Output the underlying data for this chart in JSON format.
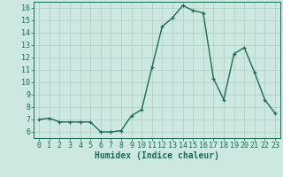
{
  "x": [
    0,
    1,
    2,
    3,
    4,
    5,
    6,
    7,
    8,
    9,
    10,
    11,
    12,
    13,
    14,
    15,
    16,
    17,
    18,
    19,
    20,
    21,
    22,
    23
  ],
  "y": [
    7.0,
    7.1,
    6.8,
    6.8,
    6.8,
    6.8,
    6.0,
    6.0,
    6.1,
    7.3,
    7.8,
    11.2,
    14.5,
    15.2,
    16.2,
    15.8,
    15.6,
    10.3,
    8.6,
    12.3,
    12.8,
    10.8,
    8.6,
    7.5
  ],
  "line_color": "#1a6b5a",
  "bg_color": "#cce8e0",
  "grid_color": "#aacfc8",
  "xlabel": "Humidex (Indice chaleur)",
  "xlim": [
    -0.5,
    23.5
  ],
  "ylim": [
    5.5,
    16.5
  ],
  "yticks": [
    6,
    7,
    8,
    9,
    10,
    11,
    12,
    13,
    14,
    15,
    16
  ],
  "xticks": [
    0,
    1,
    2,
    3,
    4,
    5,
    6,
    7,
    8,
    9,
    10,
    11,
    12,
    13,
    14,
    15,
    16,
    17,
    18,
    19,
    20,
    21,
    22,
    23
  ],
  "marker": "+",
  "marker_size": 3.5,
  "line_width": 1.0,
  "xlabel_fontsize": 7,
  "tick_fontsize": 6
}
